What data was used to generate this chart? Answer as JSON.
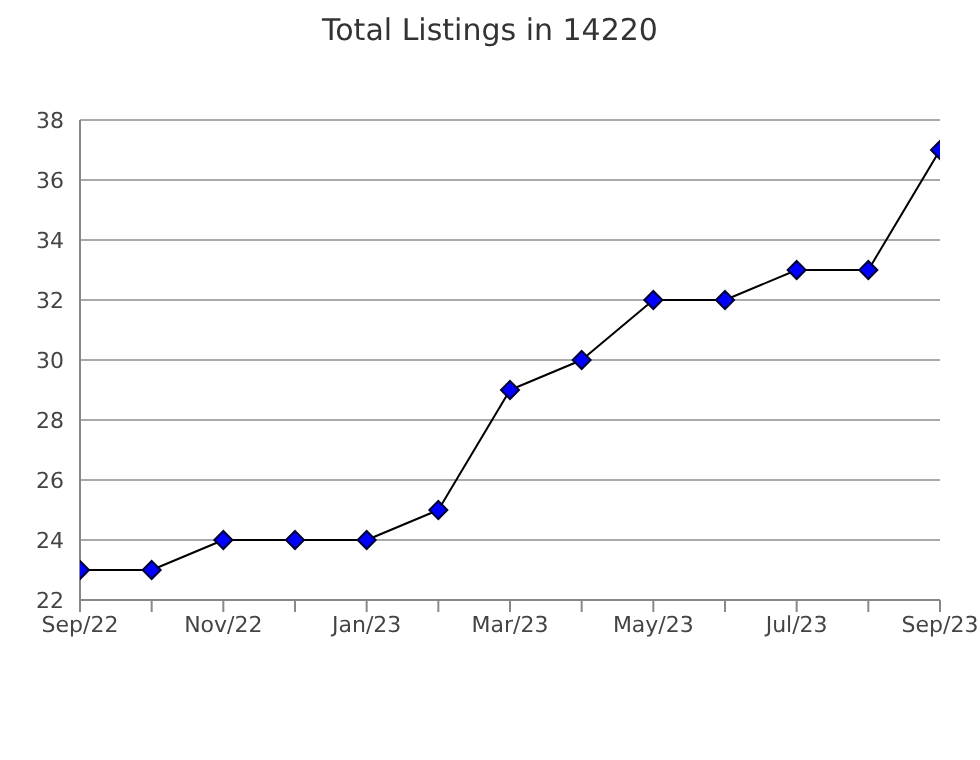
{
  "chart_data": {
    "type": "line",
    "title": "Total Listings in 14220",
    "categories": [
      "Sep/22",
      null,
      "Nov/22",
      null,
      "Jan/23",
      null,
      "Mar/23",
      null,
      "May/23",
      null,
      "Jul/23",
      null,
      "Sep/23"
    ],
    "series": [
      {
        "color": "#0000ff",
        "values": [
          23,
          23,
          24,
          24,
          24,
          25,
          29,
          30,
          32,
          32,
          33,
          33,
          37
        ]
      }
    ],
    "ylim": [
      22,
      38
    ],
    "yticks": [
      22,
      24,
      26,
      28,
      30,
      32,
      34,
      36,
      38
    ],
    "grid": "y",
    "legend": false,
    "marker": "diamond",
    "line_style": "solid"
  }
}
